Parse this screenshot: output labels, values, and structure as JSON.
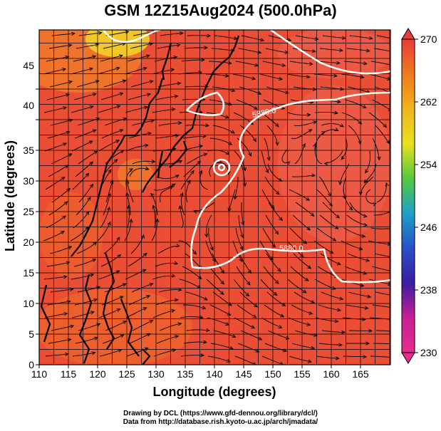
{
  "title": "GSM 12Z15Aug2024 (500.0hPa)",
  "axes": {
    "xlabel": "Longitude (degrees)",
    "ylabel": "Latitude (degrees)",
    "x_ticks": [
      "110",
      "115",
      "120",
      "125",
      "130",
      "135",
      "140",
      "145",
      "150",
      "155",
      "160",
      "165"
    ],
    "y_ticks": [
      "0",
      "5",
      "10",
      "15",
      "20",
      "25",
      "30",
      "35",
      "40",
      "45"
    ]
  },
  "colorbar": {
    "labels": [
      "270",
      "262",
      "254",
      "246",
      "238",
      "230"
    ],
    "colors": [
      "#e83c3c",
      "#f07a1c",
      "#f0b41c",
      "#e8e020",
      "#58c83c",
      "#1ea0c8",
      "#2850c8",
      "#3c1ea0",
      "#c81e96",
      "#e62d8c"
    ]
  },
  "contour_labels": [
    "5880.0",
    "5880.0"
  ],
  "credits": {
    "line1": "Drawing by DCL (https://www.gfd-dennou.org/library/dcl/)",
    "line2": "Data from http://database.rish.kyoto-u.ac.jp/arch/jmadata/"
  },
  "colors": {
    "field_base": "#ea4e34",
    "field_warm": "#f0762a",
    "field_cool": "#f06a5a",
    "contour": "#ffffff",
    "streamline": "#000000"
  }
}
